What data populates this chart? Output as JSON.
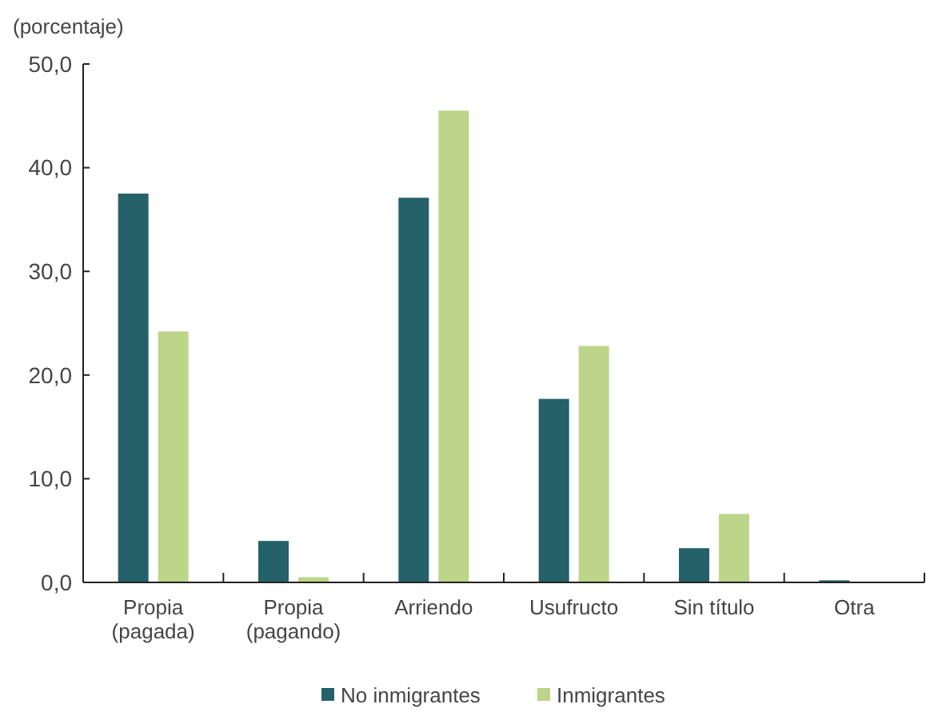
{
  "chart_data": {
    "type": "bar",
    "ylabel": "(porcentaje)",
    "categories": [
      "Propia\n(pagada)",
      "Propia\n(pagando)",
      "Arriendo",
      "Usufructo",
      "Sin título",
      "Otra"
    ],
    "series": [
      {
        "name": "No inmigrantes",
        "color": "#256168",
        "values": [
          37.5,
          4.0,
          37.1,
          17.7,
          3.3,
          0.2
        ]
      },
      {
        "name": "Inmigrantes",
        "color": "#bcd589",
        "values": [
          24.2,
          0.5,
          45.5,
          22.8,
          6.6,
          0
        ]
      }
    ],
    "ylim": [
      0,
      50
    ],
    "yticks": [
      {
        "value": 0,
        "label": "0,0"
      },
      {
        "value": 10,
        "label": "10,0"
      },
      {
        "value": 20,
        "label": "20,0"
      },
      {
        "value": 30,
        "label": "30,0"
      },
      {
        "value": 40,
        "label": "40,0"
      },
      {
        "value": 50,
        "label": "50,0"
      }
    ],
    "grid": false,
    "legend": "bottom"
  }
}
